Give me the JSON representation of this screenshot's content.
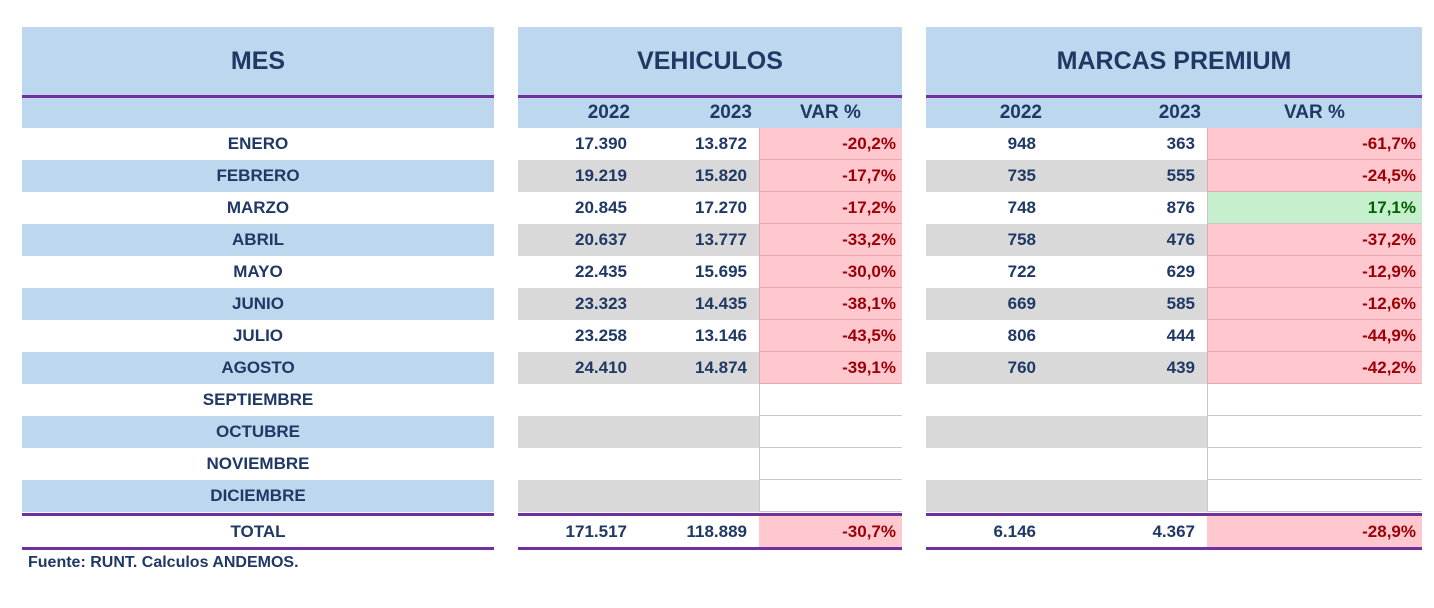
{
  "headers": {
    "mes": "MES",
    "vehiculos": "VEHICULOS",
    "premium": "MARCAS PREMIUM",
    "y1": "2022",
    "y2": "2023",
    "var": "VAR %"
  },
  "colors": {
    "header_bg": "#bdd7ee",
    "accent_line": "#7030a0",
    "negative_bg": "#ffc7ce",
    "negative_text": "#9c0006",
    "positive_bg": "#c6efce",
    "positive_text": "#006100",
    "text": "#1f3864"
  },
  "rows": [
    {
      "mes": "ENERO",
      "v2022": "17.390",
      "v2023": "13.872",
      "vvar": "-20,2%",
      "p2022": "948",
      "p2023": "363",
      "pvar": "-61,7%"
    },
    {
      "mes": "FEBRERO",
      "v2022": "19.219",
      "v2023": "15.820",
      "vvar": "-17,7%",
      "p2022": "735",
      "p2023": "555",
      "pvar": "-24,5%"
    },
    {
      "mes": "MARZO",
      "v2022": "20.845",
      "v2023": "17.270",
      "vvar": "-17,2%",
      "p2022": "748",
      "p2023": "876",
      "pvar": "17,1%"
    },
    {
      "mes": "ABRIL",
      "v2022": "20.637",
      "v2023": "13.777",
      "vvar": "-33,2%",
      "p2022": "758",
      "p2023": "476",
      "pvar": "-37,2%"
    },
    {
      "mes": "MAYO",
      "v2022": "22.435",
      "v2023": "15.695",
      "vvar": "-30,0%",
      "p2022": "722",
      "p2023": "629",
      "pvar": "-12,9%"
    },
    {
      "mes": "JUNIO",
      "v2022": "23.323",
      "v2023": "14.435",
      "vvar": "-38,1%",
      "p2022": "669",
      "p2023": "585",
      "pvar": "-12,6%"
    },
    {
      "mes": "JULIO",
      "v2022": "23.258",
      "v2023": "13.146",
      "vvar": "-43,5%",
      "p2022": "806",
      "p2023": "444",
      "pvar": "-44,9%"
    },
    {
      "mes": "AGOSTO",
      "v2022": "24.410",
      "v2023": "14.874",
      "vvar": "-39,1%",
      "p2022": "760",
      "p2023": "439",
      "pvar": "-42,2%"
    },
    {
      "mes": "SEPTIEMBRE"
    },
    {
      "mes": "OCTUBRE"
    },
    {
      "mes": "NOVIEMBRE"
    },
    {
      "mes": "DICIEMBRE"
    }
  ],
  "total": {
    "label": "TOTAL",
    "v2022": "171.517",
    "v2023": "118.889",
    "vvar": "-30,7%",
    "p2022": "6.146",
    "p2023": "4.367",
    "pvar": "-28,9%"
  },
  "footer": "Fuente: RUNT. Calculos ANDEMOS."
}
